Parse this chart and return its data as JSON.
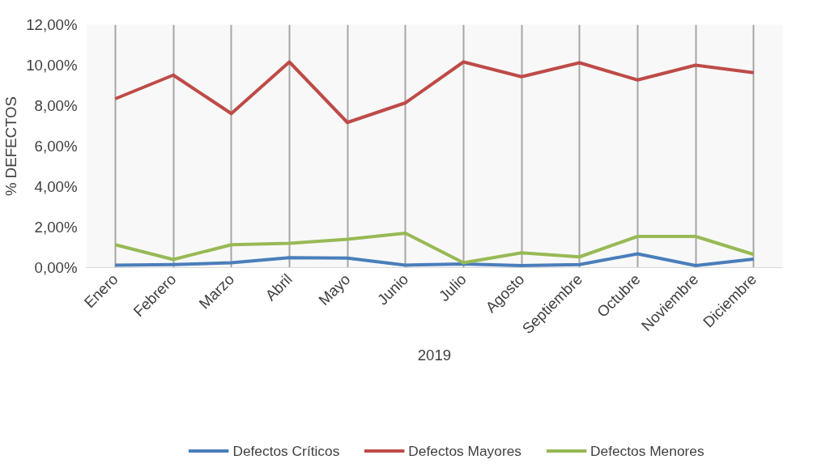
{
  "chart_data": {
    "type": "line",
    "xlabel": "2019",
    "ylabel": "% DEFECTOS",
    "categories": [
      "Enero",
      "Febrero",
      "Marzo",
      "Abril",
      "Mayo",
      "Junio",
      "Julio",
      "Agosto",
      "Septiembre",
      "Octubre",
      "Noviembre",
      "Diciembre"
    ],
    "series": [
      {
        "name": "Defectos Críticos",
        "color": "#4a7ebb",
        "values": [
          0.12,
          0.15,
          0.24,
          0.49,
          0.47,
          0.12,
          0.18,
          0.1,
          0.15,
          0.68,
          0.1,
          0.42
        ]
      },
      {
        "name": "Defectos Mayores",
        "color": "#be4b48",
        "values": [
          8.34,
          9.51,
          7.61,
          10.16,
          7.17,
          8.14,
          10.16,
          9.43,
          10.12,
          9.27,
          10.0,
          9.63
        ]
      },
      {
        "name": "Defectos Menores",
        "color": "#98b954",
        "values": [
          1.13,
          0.4,
          1.13,
          1.2,
          1.4,
          1.7,
          0.24,
          0.73,
          0.53,
          1.54,
          1.54,
          0.65
        ]
      }
    ],
    "ylim": [
      0,
      12
    ],
    "yticks": [
      {
        "value": 0,
        "label": "0,00%"
      },
      {
        "value": 2,
        "label": "2,00%"
      },
      {
        "value": 4,
        "label": "4,00%"
      },
      {
        "value": 6,
        "label": "6,00%"
      },
      {
        "value": 8,
        "label": "8,00%"
      },
      {
        "value": 10,
        "label": "10,00%"
      },
      {
        "value": 12,
        "label": "12,00%"
      }
    ],
    "grid": "x",
    "legend": "bottom",
    "marker": "none",
    "line_style": "solid"
  }
}
